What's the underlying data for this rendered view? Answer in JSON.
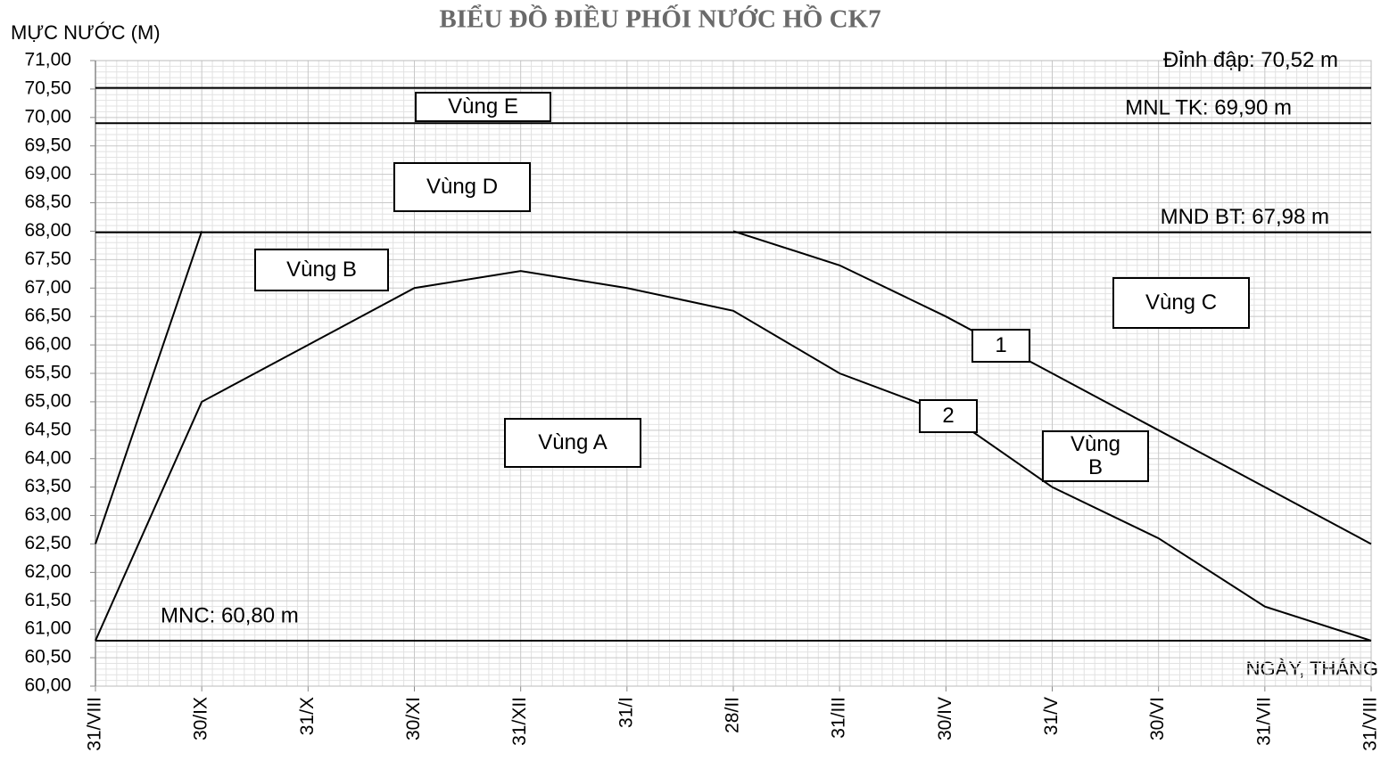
{
  "chart_data": {
    "type": "line",
    "title": "BIỂU ĐỒ ĐIỀU PHỐI NƯỚC HỒ CK7",
    "y_label": "MỰC NƯỚC (M)",
    "x_label": "NGÀY, THÁNG",
    "categories": [
      "31/VIII",
      "30/IX",
      "31/X",
      "30/XI",
      "31/XII",
      "31/I",
      "28/II",
      "31/III",
      "30/IV",
      "31/V",
      "30/VI",
      "31/VII",
      "31/VIII"
    ],
    "series": [
      {
        "name": "1",
        "color": "#000000",
        "values": [
          62.5,
          68.0,
          null,
          null,
          null,
          null,
          68.0,
          67.4,
          66.5,
          65.5,
          64.5,
          63.5,
          62.5
        ]
      },
      {
        "name": "2",
        "color": "#000000",
        "values": [
          60.8,
          65.0,
          66.0,
          67.0,
          67.3,
          67.0,
          66.6,
          65.5,
          64.8,
          63.5,
          62.6,
          61.4,
          60.8
        ]
      }
    ],
    "reference_lines": [
      {
        "label": "Đỉnh đập: 70,52 m",
        "value": 70.52
      },
      {
        "label": "MNL TK: 69,90 m",
        "value": 69.9
      },
      {
        "label": "MND BT: 67,98 m",
        "value": 67.98
      },
      {
        "label": "MNC: 60,80 m",
        "value": 60.8
      }
    ],
    "annotations": [
      "Vùng E",
      "Vùng D",
      "Vùng B",
      "Vùng A",
      "1",
      "2",
      "Vùng C",
      "Vùng B"
    ],
    "ylim": [
      60,
      71
    ],
    "yticks": [
      {
        "value": 60,
        "label": "60,00"
      },
      {
        "value": 60.5,
        "label": "60,50"
      },
      {
        "value": 61,
        "label": "61,00"
      },
      {
        "value": 61.5,
        "label": "61,50"
      },
      {
        "value": 62,
        "label": "62,00"
      },
      {
        "value": 62.5,
        "label": "62,50"
      },
      {
        "value": 63,
        "label": "63,00"
      },
      {
        "value": 63.5,
        "label": "63,50"
      },
      {
        "value": 64,
        "label": "64,00"
      },
      {
        "value": 64.5,
        "label": "64,50"
      },
      {
        "value": 65,
        "label": "65,00"
      },
      {
        "value": 65.5,
        "label": "65,50"
      },
      {
        "value": 66,
        "label": "66,00"
      },
      {
        "value": 66.5,
        "label": "66,50"
      },
      {
        "value": 67,
        "label": "67,00"
      },
      {
        "value": 67.5,
        "label": "67,50"
      },
      {
        "value": 68,
        "label": "68,00"
      },
      {
        "value": 68.5,
        "label": "68,50"
      },
      {
        "value": 69,
        "label": "69,00"
      },
      {
        "value": 69.5,
        "label": "69,50"
      },
      {
        "value": 70,
        "label": "70,00"
      },
      {
        "value": 70.5,
        "label": "70,50"
      },
      {
        "value": 71,
        "label": "71,00"
      }
    ],
    "grid": true,
    "minor_grid": true
  }
}
